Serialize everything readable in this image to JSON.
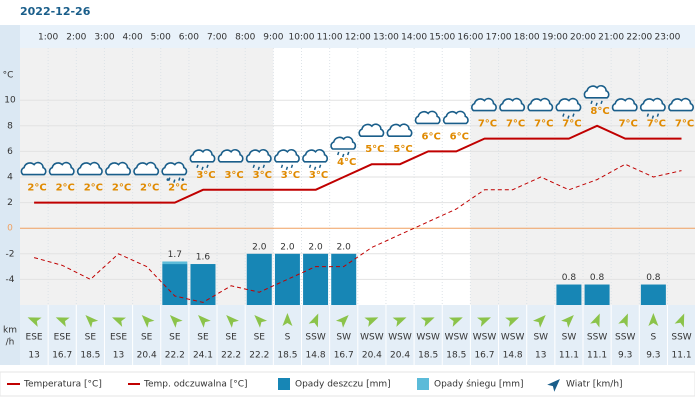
{
  "date": "2022-12-26",
  "chart_data": {
    "type": "weather",
    "hours": [
      "1:00",
      "2:00",
      "3:00",
      "4:00",
      "5:00",
      "6:00",
      "7:00",
      "8:00",
      "9:00",
      "10:00",
      "11:00",
      "12:00",
      "13:00",
      "14:00",
      "15:00",
      "16:00",
      "17:00",
      "18:00",
      "19:00",
      "20:00",
      "21:00",
      "22:00",
      "23:00"
    ],
    "y_unit": "°C",
    "ylim": [
      -6,
      14
    ],
    "yticks": [
      -4,
      -2,
      0,
      2,
      4,
      6,
      8,
      10
    ],
    "zero_color": "#f0a060",
    "precip_lim": [
      0,
      10
    ],
    "temperature": {
      "name": "Temperatura [°C]",
      "color": "#c00000",
      "values": [
        2,
        2,
        2,
        2,
        2,
        2,
        3,
        3,
        3,
        3,
        3,
        4,
        5,
        5,
        6,
        6,
        7,
        7,
        7,
        7,
        8,
        7,
        7,
        7
      ],
      "value_labels": [
        "2°C",
        "2°C",
        "2°C",
        "2°C",
        "2°C",
        "2°C",
        "3°C",
        "3°C",
        "3°C",
        "3°C",
        "3°C",
        "4°C",
        "5°C",
        "5°C",
        "6°C",
        "6°C",
        "7°C",
        "7°C",
        "7°C",
        "7°C",
        "8°C",
        "7°C",
        "7°C",
        "7°C"
      ]
    },
    "feels_like": {
      "name": "Temp. odczuwalna [°C]",
      "color": "#c00000",
      "values": [
        -2.3,
        -2.9,
        -4,
        -2,
        -3,
        -5.3,
        -5.8,
        -4.5,
        -5,
        -4,
        -3,
        -3,
        -1.5,
        -0.5,
        0.5,
        1.5,
        3,
        3,
        4,
        3,
        3.8,
        5,
        4,
        4.5
      ]
    },
    "rain": {
      "name": "Opady deszczu [mm]",
      "color": "#1786b5",
      "values": [
        0,
        0,
        0,
        0,
        0,
        1.6,
        1.6,
        0,
        2.0,
        2.0,
        2.0,
        2.0,
        0,
        0,
        0,
        0,
        0,
        0,
        0,
        0.8,
        0.8,
        0,
        0.8,
        0
      ]
    },
    "snow": {
      "name": "Opady śniegu [mm]",
      "color": "#5bbbd9",
      "values": [
        0,
        0,
        0,
        0,
        0,
        0.1,
        0,
        0,
        0,
        0,
        0,
        0,
        0,
        0,
        0,
        0,
        0,
        0,
        0,
        0,
        0,
        0,
        0,
        0
      ]
    },
    "totals": {
      "values": [
        null,
        null,
        null,
        null,
        null,
        1.7,
        1.6,
        null,
        2.0,
        2.0,
        2.0,
        2.0,
        null,
        null,
        null,
        null,
        null,
        null,
        null,
        0.8,
        0.8,
        null,
        0.8,
        null
      ],
      "value_labels": [
        null,
        null,
        null,
        null,
        null,
        "1.7",
        "1.6",
        null,
        "2.0",
        "2.0",
        "2.0",
        "2.0",
        null,
        null,
        null,
        null,
        null,
        null,
        null,
        "0.8",
        "0.8",
        null,
        "0.8",
        null
      ]
    },
    "wind": {
      "name": "Wiatr [km/h]",
      "color": "#8bc34a",
      "directions": [
        "ESE",
        "ESE",
        "SE",
        "ESE",
        "SE",
        "SE",
        "SE",
        "SE",
        "SE",
        "S",
        "SSW",
        "SW",
        "WSW",
        "WSW",
        "WSW",
        "WSW",
        "WSW",
        "WSW",
        "SW",
        "SW",
        "SSW",
        "SSW",
        "S",
        "SSW"
      ],
      "values": [
        13,
        16.7,
        18.5,
        13,
        20.4,
        22.2,
        24.1,
        22.2,
        22.2,
        18.5,
        14.8,
        16.7,
        20.4,
        20.4,
        18.5,
        18.5,
        16.7,
        14.8,
        13,
        11.1,
        11.1,
        9.3,
        9.3,
        11.1
      ]
    },
    "wind_unit_lines": [
      "km",
      "/h"
    ]
  }
}
